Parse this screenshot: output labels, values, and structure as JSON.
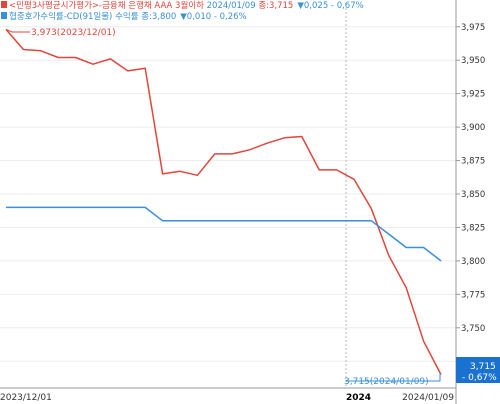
{
  "chart_data": {
    "type": "line",
    "legend": [
      {
        "color": "#e0463c",
        "text_prefix": "<민평3사평균시가평가>-금융채 은행채 AAA 3월이하 ",
        "text_date": "2024/01/09",
        "text_close": " 종:3,715",
        "text_change": "▼0,025 - 0,67%"
      },
      {
        "color": "#3a8fd8",
        "text_prefix": "협중호가수익률-CD(91일물) 수익률 종:3,800",
        "text_date": "",
        "text_close": "",
        "text_change": "▼0,010 - 0,26%"
      }
    ],
    "x_labels": [
      {
        "text": "2023/12/01",
        "bold": false
      },
      {
        "text": "2024",
        "bold": true
      },
      {
        "text": "2024/01/09",
        "bold": false
      }
    ],
    "ylim": [
      3.705,
      3.995
    ],
    "y_ticks": [
      3.725,
      3.75,
      3.775,
      3.8,
      3.825,
      3.85,
      3.875,
      3.9,
      3.925,
      3.95,
      3.975
    ],
    "y_tick_labels": [
      "3,725",
      "3,750",
      "3,775",
      "3,800",
      "3,825",
      "3,850",
      "3,875",
      "3,900",
      "3,925",
      "3,950",
      "3,975"
    ],
    "series": [
      {
        "color": "#e0463c",
        "values": [
          3.973,
          3.958,
          3.957,
          3.952,
          3.952,
          3.947,
          3.951,
          3.942,
          3.944,
          3.865,
          3.867,
          3.864,
          3.88,
          3.88,
          3.883,
          3.888,
          3.892,
          3.893,
          3.868,
          3.868,
          3.861,
          3.839,
          3.804,
          3.78,
          3.74,
          3.715
        ]
      },
      {
        "color": "#3a8fd8",
        "values": [
          3.84,
          3.84,
          3.84,
          3.84,
          3.84,
          3.84,
          3.84,
          3.84,
          3.84,
          3.83,
          3.83,
          3.83,
          3.83,
          3.83,
          3.83,
          3.83,
          3.83,
          3.83,
          3.83,
          3.83,
          3.83,
          3.83,
          3.82,
          3.81,
          3.81,
          3.8
        ]
      }
    ],
    "annotations": {
      "high": "3,973(2023/12/01)",
      "low": "3,715(2024/01/09)"
    },
    "last_value_badge": {
      "value": "3,715",
      "change": "- 0,67%"
    }
  }
}
